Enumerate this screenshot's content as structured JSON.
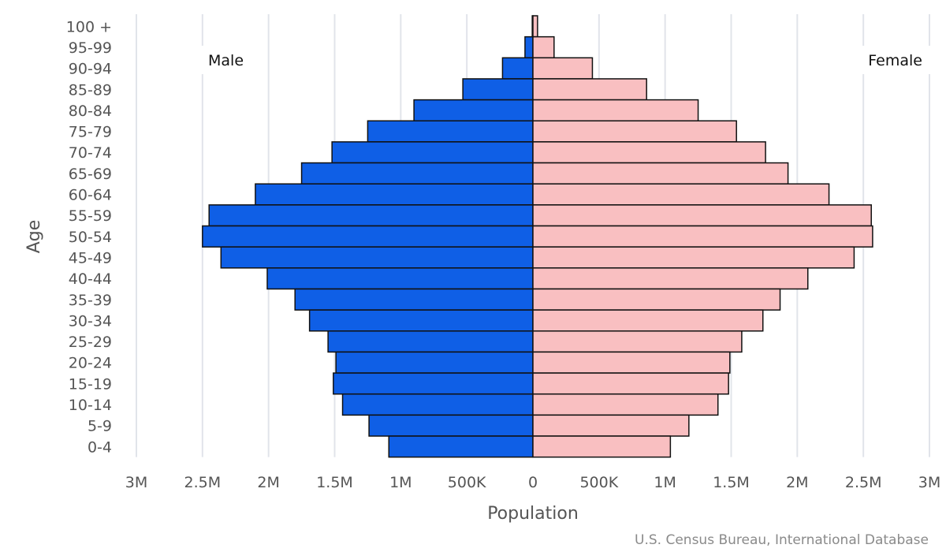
{
  "chart_data": {
    "type": "bar",
    "orientation": "horizontal",
    "ylabel": "Age",
    "xlabel": "Population",
    "xlim": [
      -3000000,
      3000000
    ],
    "xticks": [
      {
        "value": -3000000,
        "label": "3M"
      },
      {
        "value": -2500000,
        "label": "2.5M"
      },
      {
        "value": -2000000,
        "label": "2M"
      },
      {
        "value": -1500000,
        "label": "1.5M"
      },
      {
        "value": -1000000,
        "label": "1M"
      },
      {
        "value": -500000,
        "label": "500K"
      },
      {
        "value": 0,
        "label": "0"
      },
      {
        "value": 500000,
        "label": "500K"
      },
      {
        "value": 1000000,
        "label": "1M"
      },
      {
        "value": 1500000,
        "label": "1.5M"
      },
      {
        "value": 2000000,
        "label": "2M"
      },
      {
        "value": 2500000,
        "label": "2.5M"
      },
      {
        "value": 3000000,
        "label": "3M"
      }
    ],
    "categories": [
      "100 +",
      "95-99",
      "90-94",
      "85-89",
      "80-84",
      "75-79",
      "70-74",
      "65-69",
      "60-64",
      "55-59",
      "50-54",
      "45-49",
      "40-44",
      "35-39",
      "30-34",
      "25-29",
      "20-24",
      "15-19",
      "10-14",
      "5-9",
      "0-4"
    ],
    "series": [
      {
        "name": "Male",
        "color": "#0f5fe6",
        "values": [
          5000,
          60000,
          230000,
          530000,
          900000,
          1250000,
          1520000,
          1750000,
          2100000,
          2450000,
          2500000,
          2360000,
          2010000,
          1800000,
          1690000,
          1550000,
          1490000,
          1510000,
          1440000,
          1240000,
          1090000
        ]
      },
      {
        "name": "Female",
        "color": "#f9bfc1",
        "values": [
          35000,
          160000,
          450000,
          860000,
          1250000,
          1540000,
          1760000,
          1930000,
          2240000,
          2560000,
          2570000,
          2430000,
          2080000,
          1870000,
          1740000,
          1580000,
          1490000,
          1480000,
          1400000,
          1180000,
          1040000
        ]
      }
    ],
    "grid": true,
    "legend": "side labels: Male top-left, Female top-right",
    "source": "U.S. Census Bureau, International Database"
  }
}
